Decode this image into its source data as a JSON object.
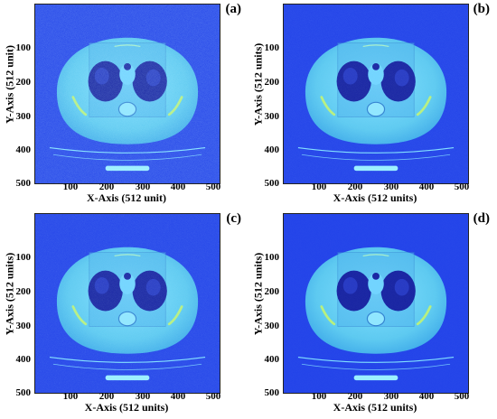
{
  "panels": [
    {
      "letter": "(a)",
      "xlabel": "X-Axis (512 unit)",
      "ylabel": "Y-Axis (512 unit)",
      "noise": 0.9
    },
    {
      "letter": "(b)",
      "xlabel": "X-Axis (512 units)",
      "ylabel": "Y-Axis (512 units)",
      "noise": 0.35
    },
    {
      "letter": "(c)",
      "xlabel": "X-Axis (512 units)",
      "ylabel": "Y-Axis (512 units)",
      "noise": 0.55
    },
    {
      "letter": "(d)",
      "xlabel": "X-Axis (512 units)",
      "ylabel": "Y-Axis (512 units)",
      "noise": 0.2
    }
  ],
  "xticks": [
    "100",
    "200",
    "300",
    "400",
    "500"
  ],
  "yticks": [
    "100",
    "200",
    "300",
    "400",
    "500"
  ],
  "colors": {
    "background": "#1f3fe8",
    "body": "#5ac8f0",
    "lung": "#1520a0",
    "bright": "#b8f07a"
  }
}
